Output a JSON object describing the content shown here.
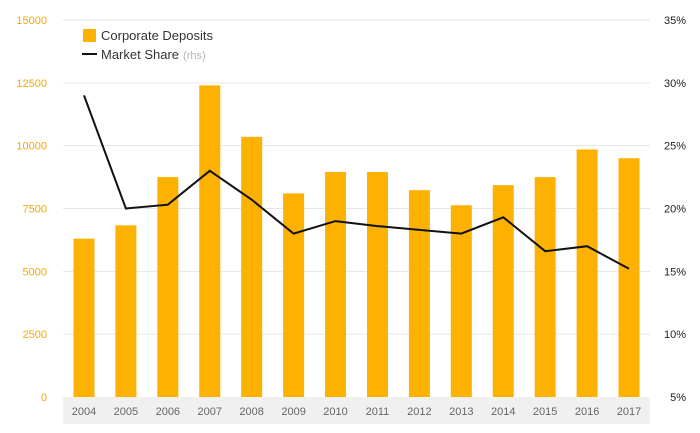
{
  "colors": {
    "bar": "#FDB100",
    "line": "#111111",
    "grid": "#e6e6e6",
    "left_axis_text": "#f2a900",
    "right_axis_text": "#222222",
    "x_axis_text": "#666666",
    "axis_bg": "#f0f0f0"
  },
  "chart_data": {
    "type": "bar",
    "categories": [
      "2004",
      "2005",
      "2006",
      "2007",
      "2008",
      "2009",
      "2010",
      "2011",
      "2012",
      "2013",
      "2014",
      "2015",
      "2016",
      "2017"
    ],
    "series": [
      {
        "name": "Corporate Deposits",
        "type": "bar",
        "axis": "left",
        "values": [
          6300,
          6830,
          8750,
          12400,
          10350,
          8100,
          8950,
          8950,
          8230,
          7630,
          8430,
          8750,
          9850,
          9500
        ]
      },
      {
        "name": "Market Share",
        "name_suffix": "(rhs)",
        "type": "line",
        "axis": "right",
        "values": [
          29.0,
          20.0,
          20.3,
          23.0,
          20.7,
          18.0,
          19.0,
          18.6,
          18.3,
          18.0,
          19.3,
          16.6,
          17.0,
          15.2
        ]
      }
    ],
    "left_axis": {
      "ylim": [
        0,
        15000
      ],
      "ticks": [
        "0",
        "2500",
        "5000",
        "7500",
        "10000",
        "12500",
        "15000"
      ]
    },
    "right_axis": {
      "ylim": [
        5,
        35
      ],
      "ticks": [
        "5%",
        "10%",
        "15%",
        "20%",
        "25%",
        "30%",
        "35%"
      ]
    },
    "grid": true,
    "legend": "top-left",
    "title": "",
    "xlabel": "",
    "ylabel": ""
  }
}
